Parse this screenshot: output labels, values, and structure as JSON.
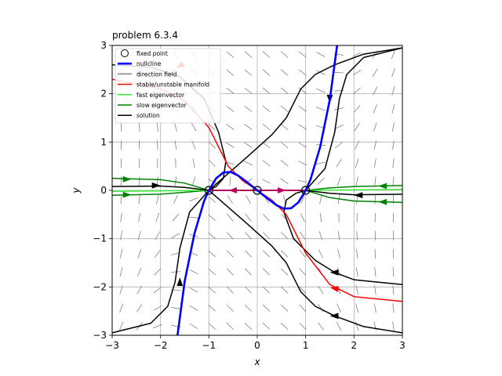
{
  "chart_data": {
    "type": "line",
    "title": "problem 6.3.4",
    "xlabel": "x",
    "ylabel": "y",
    "xlim": [
      -3,
      3
    ],
    "ylim": [
      -3,
      3
    ],
    "xticks": [
      "−3",
      "−2",
      "−1",
      "0",
      "1",
      "2",
      "3"
    ],
    "yticks": [
      "−3",
      "−2",
      "−1",
      "0",
      "1",
      "2",
      "3"
    ],
    "grid": true,
    "legend_position": "top-left",
    "legend": [
      {
        "label": "fixed point",
        "kind": "circle",
        "color": "#000000"
      },
      {
        "label": "nullcline",
        "kind": "line",
        "color": "#0000ff"
      },
      {
        "label": "direction field",
        "kind": "line",
        "color": "#808080"
      },
      {
        "label": "stable/unstable manifold",
        "kind": "line",
        "color": "#ff0000"
      },
      {
        "label": "fast eigenvector",
        "kind": "line",
        "color": "#33ee33"
      },
      {
        "label": "slow eigenvector",
        "kind": "line",
        "color": "#008000"
      },
      {
        "label": "solution",
        "kind": "line",
        "color": "#000000"
      }
    ],
    "fixed_points": [
      [
        -1,
        0
      ],
      [
        0,
        0
      ],
      [
        1,
        0
      ]
    ],
    "nullcline": [
      [
        -1.65,
        -3
      ],
      [
        -1.5,
        -1.88
      ],
      [
        -1.3,
        -0.9
      ],
      [
        -1.1,
        -0.22
      ],
      [
        -1.0,
        0
      ],
      [
        -0.85,
        0.25
      ],
      [
        -0.7,
        0.37
      ],
      [
        -0.55,
        0.38
      ],
      [
        -0.4,
        0.31
      ],
      [
        -0.2,
        0.16
      ],
      [
        0,
        0
      ],
      [
        0.2,
        -0.16
      ],
      [
        0.4,
        -0.31
      ],
      [
        0.55,
        -0.38
      ],
      [
        0.7,
        -0.37
      ],
      [
        0.85,
        -0.25
      ],
      [
        1.0,
        0
      ],
      [
        1.1,
        0.22
      ],
      [
        1.3,
        0.9
      ],
      [
        1.5,
        1.88
      ],
      [
        1.65,
        3
      ]
    ],
    "manifold": [
      [
        -3,
        2.3
      ],
      [
        -2.0,
        2.1
      ],
      [
        -1.5,
        1.85
      ],
      [
        -1.0,
        1.3
      ],
      [
        -0.6,
        0.5
      ],
      [
        -0.3,
        0.2
      ],
      [
        0,
        0
      ],
      [
        0.3,
        -0.2
      ],
      [
        0.6,
        -0.5
      ],
      [
        1.0,
        -1.3
      ],
      [
        1.5,
        -1.95
      ],
      [
        2.0,
        -2.2
      ],
      [
        3,
        -2.3
      ]
    ],
    "manifold_arrows": [
      [
        -1.6,
        2.58
      ],
      [
        1.6,
        -2.03
      ]
    ],
    "axis_segment": [
      [
        -1,
        0
      ],
      [
        1,
        0
      ]
    ],
    "axis_arrows": [
      [
        -0.5,
        0,
        -1
      ],
      [
        0.5,
        0,
        1
      ]
    ],
    "slow_eigenvectors": [
      [
        [
          -3,
          0.25
        ],
        [
          -2.0,
          0.22
        ],
        [
          -1.5,
          0.15
        ],
        [
          -1,
          0
        ]
      ],
      [
        [
          -3,
          -0.1
        ],
        [
          -2.0,
          -0.08
        ],
        [
          -1.5,
          -0.04
        ],
        [
          -1,
          0
        ]
      ],
      [
        [
          1,
          0
        ],
        [
          1.5,
          -0.15
        ],
        [
          2.0,
          -0.22
        ],
        [
          3,
          -0.25
        ]
      ],
      [
        [
          1,
          0
        ],
        [
          1.5,
          0.05
        ],
        [
          2.0,
          0.08
        ],
        [
          3,
          0.1
        ]
      ]
    ],
    "fast_eigenvectors": [
      [
        [
          -3,
          -0.02
        ],
        [
          -1,
          0
        ]
      ],
      [
        [
          1,
          0
        ],
        [
          3,
          0.02
        ]
      ]
    ],
    "solutions": [
      [
        [
          -3,
          2.6
        ],
        [
          -2.2,
          2.55
        ],
        [
          -1.6,
          2.35
        ],
        [
          -1.1,
          1.9
        ],
        [
          -0.8,
          1.2
        ],
        [
          -0.65,
          0.6
        ],
        [
          -0.7,
          0.25
        ],
        [
          -0.85,
          0.08
        ],
        [
          -1,
          0
        ]
      ],
      [
        [
          -1,
          0
        ],
        [
          -1.4,
          -0.45
        ],
        [
          -1.6,
          -1.2
        ],
        [
          -1.7,
          -1.9
        ],
        [
          -1.85,
          -2.4
        ],
        [
          -2.2,
          -2.75
        ],
        [
          -3,
          -2.95
        ]
      ],
      [
        [
          -1,
          0
        ],
        [
          -0.6,
          -0.35
        ],
        [
          -0.2,
          -0.7
        ],
        [
          0.3,
          -1.15
        ],
        [
          0.6,
          -1.5
        ],
        [
          0.9,
          -2.1
        ],
        [
          1.2,
          -2.4
        ],
        [
          1.6,
          -2.6
        ],
        [
          2.2,
          -2.82
        ],
        [
          3,
          -2.95
        ]
      ],
      [
        [
          3,
          2.95
        ],
        [
          2.2,
          2.82
        ],
        [
          1.6,
          2.6
        ],
        [
          1.2,
          2.4
        ],
        [
          0.9,
          2.1
        ],
        [
          0.6,
          1.5
        ],
        [
          0.3,
          1.15
        ],
        [
          -0.2,
          0.7
        ],
        [
          -0.6,
          0.35
        ],
        [
          -1,
          0
        ]
      ],
      [
        [
          1,
          0
        ],
        [
          1.4,
          0.45
        ],
        [
          1.6,
          1.2
        ],
        [
          1.7,
          1.9
        ],
        [
          1.85,
          2.4
        ],
        [
          2.2,
          2.75
        ],
        [
          3,
          2.95
        ]
      ],
      [
        [
          3,
          -1.95
        ],
        [
          2.0,
          -1.85
        ],
        [
          1.6,
          -1.7
        ],
        [
          1.2,
          -1.45
        ],
        [
          0.75,
          -1.0
        ],
        [
          0.55,
          -0.45
        ],
        [
          0.6,
          -0.2
        ],
        [
          0.8,
          -0.06
        ],
        [
          1,
          0
        ]
      ],
      [
        [
          -3,
          0.08
        ],
        [
          -2.0,
          0.09
        ],
        [
          -1.5,
          0.06
        ],
        [
          -1,
          0
        ]
      ],
      [
        [
          1,
          0
        ],
        [
          1.5,
          -0.06
        ],
        [
          2.0,
          -0.09
        ],
        [
          3,
          -0.08
        ]
      ]
    ],
    "solution_arrows": [
      [
        -2.1,
        0.1,
        1
      ],
      [
        1.5,
        1.9,
        -1
      ],
      [
        2.1,
        -0.1,
        -1
      ],
      [
        -1.6,
        -1.9,
        1
      ],
      [
        1.6,
        -1.7,
        -1
      ],
      [
        1.6,
        -2.6,
        -1
      ]
    ],
    "slow_arrows": [
      [
        -2.7,
        0.23,
        1
      ],
      [
        -2.7,
        -0.09,
        1
      ],
      [
        2.6,
        -0.24,
        -1
      ],
      [
        2.6,
        0.09,
        -1
      ]
    ]
  }
}
